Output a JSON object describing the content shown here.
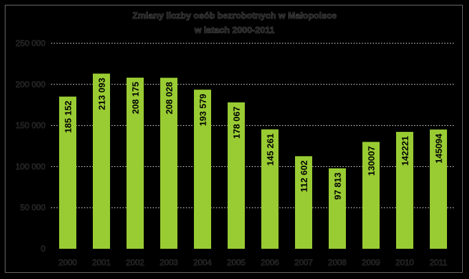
{
  "chart_data": {
    "type": "bar",
    "title": "Zmiany liczby osób bezrobotnych w Małopolsce",
    "subtitle": "w latach 2000-2011",
    "xlabel": "",
    "ylabel": "",
    "categories": [
      "2000",
      "2001",
      "2002",
      "2003",
      "2004",
      "2005",
      "2006",
      "2007",
      "2008",
      "2009",
      "2010",
      "2011"
    ],
    "values": [
      185152,
      213093,
      208175,
      208028,
      193579,
      178067,
      145261,
      112602,
      97813,
      130007,
      142221,
      145094
    ],
    "value_labels": [
      "185 152",
      "213 093",
      "208 175",
      "208 028",
      "193 579",
      "178 067",
      "145 261",
      "112 602",
      "97 813",
      "130007",
      "142221",
      "145094"
    ],
    "ylim": [
      0,
      250000
    ],
    "yticks": [
      0,
      50000,
      100000,
      150000,
      200000,
      250000
    ],
    "ytick_labels": [
      "0",
      "50 000",
      "100 000",
      "150 000",
      "200 000",
      "250 000"
    ],
    "grid": true,
    "legend": "none",
    "colors": {
      "bar": "#99cc33",
      "background": "#000000",
      "grid": "#bbbbbb"
    }
  }
}
